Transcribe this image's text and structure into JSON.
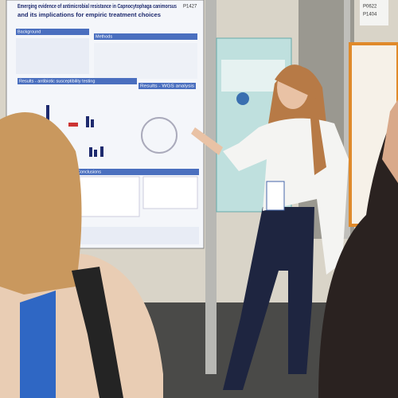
{
  "poster": {
    "title_lines": [
      "Emerging evidence of antimicrobial resistance in Capnocytophaga canimorsus",
      "and its implications for empiric treatment choices"
    ],
    "board_number": "P1427",
    "sections": [
      "Background",
      "Methods",
      "Results - antibiotic susceptibility testing",
      "Results - WGS analysis",
      "Conclusions"
    ]
  },
  "sign": {
    "numbers": [
      "P0622",
      "P1404"
    ]
  }
}
